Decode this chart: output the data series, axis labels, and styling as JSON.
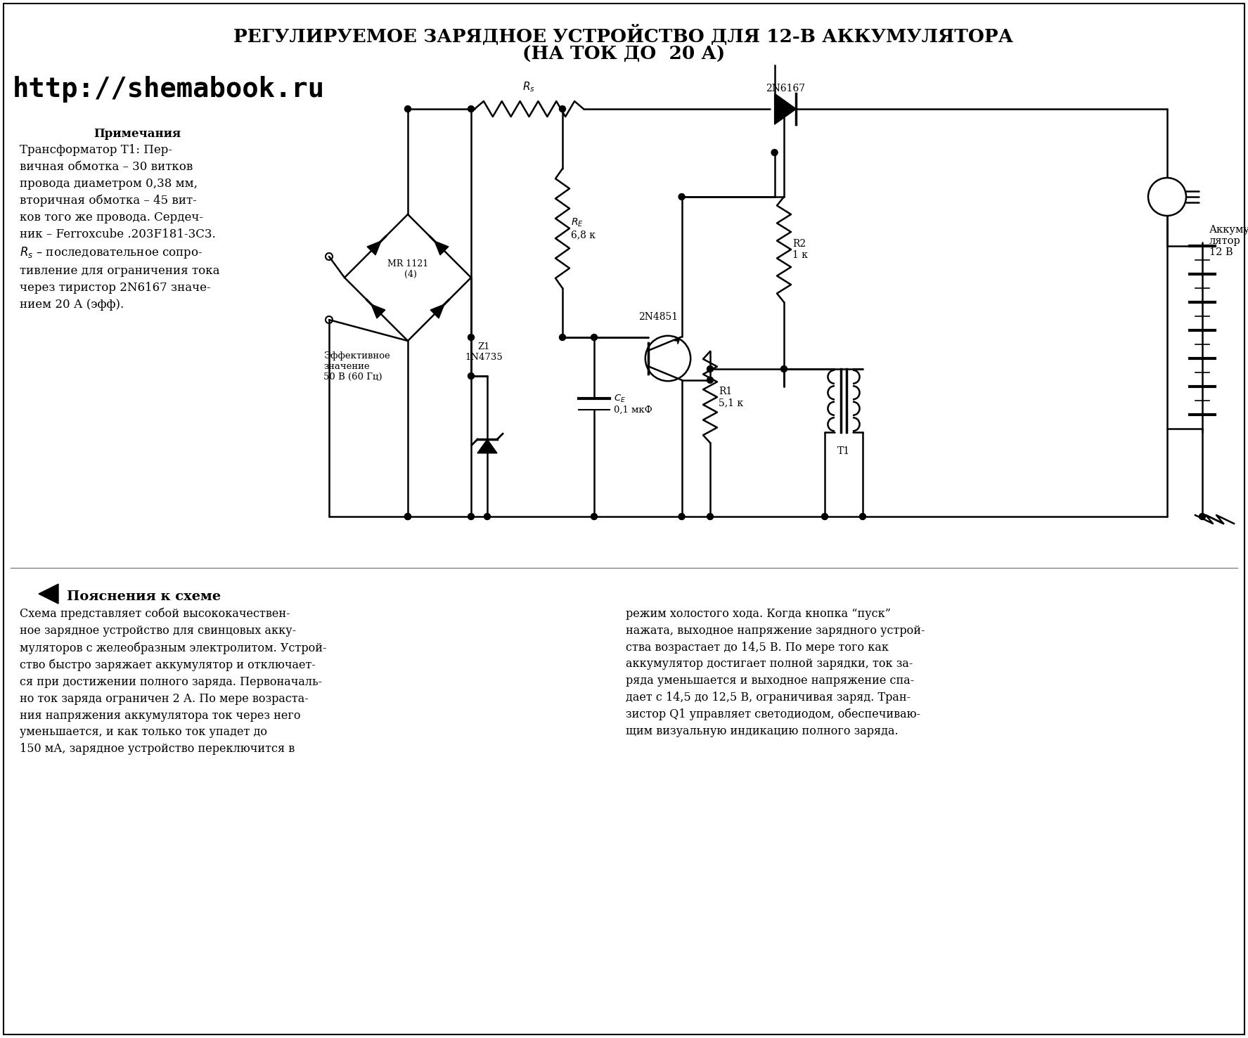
{
  "title_line1": "РЕГУЛИРУЕМОЕ ЗАРЯДНОЕ УСТРОЙСТВО ДЛЯ 12-В АККУМУЛЯТОРА",
  "title_line2": "(НА ТОК ДО  20 А)",
  "url": "http://shemabook.ru",
  "notes_title": "Примечания",
  "notes_body": "Трансформатор Т1: Пер-\nвичная обмотка – 30 витков\nпровода диаметром 0,38 мм,\nвторичная обмотка – 45 вит-\nков того же провода. Сердеч-\nник – Ferroxcube .203F181-3C3.\n$R_s$ – последовательное сопро-\nтивление для ограничения тока\nчерез тиристор 2N6167 значе-\nнием 20 А (эфф).",
  "explanation_title": "Пояснения к схеме",
  "explanation_left": "Схема представляет собой высококачествен-\nное зарядное устройство для свинцовых акку-\nмуляторов с желеобразным электролитом. Устрой-\nство быстро заряжает аккумулятор и отключает-\nся при достижении полного заряда. Первоначаль-\nно ток заряда ограничен 2 А. По мере возраста-\nния напряжения аккумулятора ток через него\nуменьшается, и как только ток упадет до\n150 мА, зарядное устройство переключится в",
  "explanation_right": "режим холостого хода. Когда кнопка “пуск”\nнажата, выходное напряжение зарядного устрой-\nства возрастает до 14,5 В. По мере того как\nаккумулятор достигает полной зарядки, ток за-\nряда уменьшается и выходное напряжение спа-\nдает с 14,5 до 12,5 В, ограничивая заряд. Тран-\nзистор Q1 управляет светодиодом, обеспечиваю-\nщим визуальную индикацию полного заряда.",
  "bg_color": "#ffffff",
  "text_color": "#000000"
}
